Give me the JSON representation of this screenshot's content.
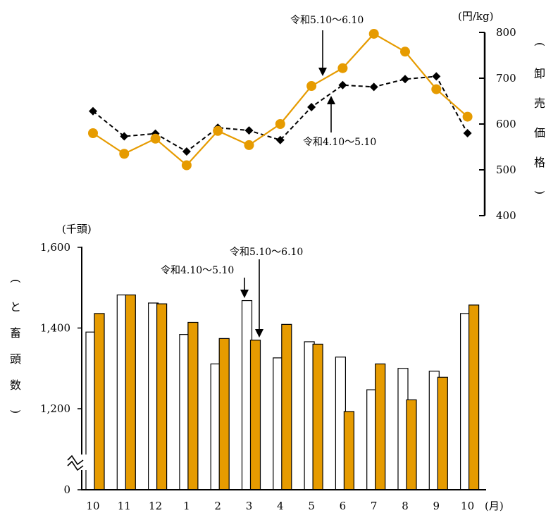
{
  "colors": {
    "current": "#E69B00",
    "previous": "#000000",
    "bar_prev_fill": "#ffffff"
  },
  "chart_data": [
    {
      "type": "line",
      "x": [
        "10",
        "11",
        "12",
        "1",
        "2",
        "3",
        "4",
        "5",
        "6",
        "7",
        "8",
        "9",
        "10"
      ],
      "series": [
        {
          "name": "令和5.10〜6.10",
          "style": "solid orange with circles",
          "values": [
            580,
            535,
            568,
            510,
            585,
            554,
            600,
            683,
            722,
            797,
            758,
            676,
            616
          ]
        },
        {
          "name": "令和4.10〜5.10",
          "style": "dashed black with diamonds",
          "values": [
            628,
            573,
            579,
            540,
            592,
            586,
            565,
            637,
            685,
            681,
            698,
            704,
            580
          ]
        }
      ],
      "yunit": "(円/kg)",
      "ylabel": "卸売価格",
      "ylim": [
        400,
        800
      ],
      "yticks": [
        "800",
        "700",
        "600",
        "500",
        "400"
      ]
    },
    {
      "type": "bar",
      "categories": [
        "10",
        "11",
        "12",
        "1",
        "2",
        "3",
        "4",
        "5",
        "6",
        "7",
        "8",
        "9",
        "10"
      ],
      "xunit": "(月)",
      "series": [
        {
          "name": "令和4.10〜5.10",
          "values": [
            1390,
            1482,
            1462,
            1384,
            1311,
            1468,
            1326,
            1366,
            1328,
            1247,
            1300,
            1293,
            1436
          ]
        },
        {
          "name": "令和5.10〜6.10",
          "values": [
            1436,
            1482,
            1460,
            1414,
            1374,
            1370,
            1409,
            1360,
            1193,
            1311,
            1222,
            1278,
            1457
          ]
        }
      ],
      "yunit": "(千頭)",
      "ylabel": "と畜頭数",
      "ylim": [
        0,
        1600
      ],
      "yticks": [
        "1,600",
        "1,400",
        "1,200",
        "0"
      ],
      "axis_break": true
    }
  ]
}
